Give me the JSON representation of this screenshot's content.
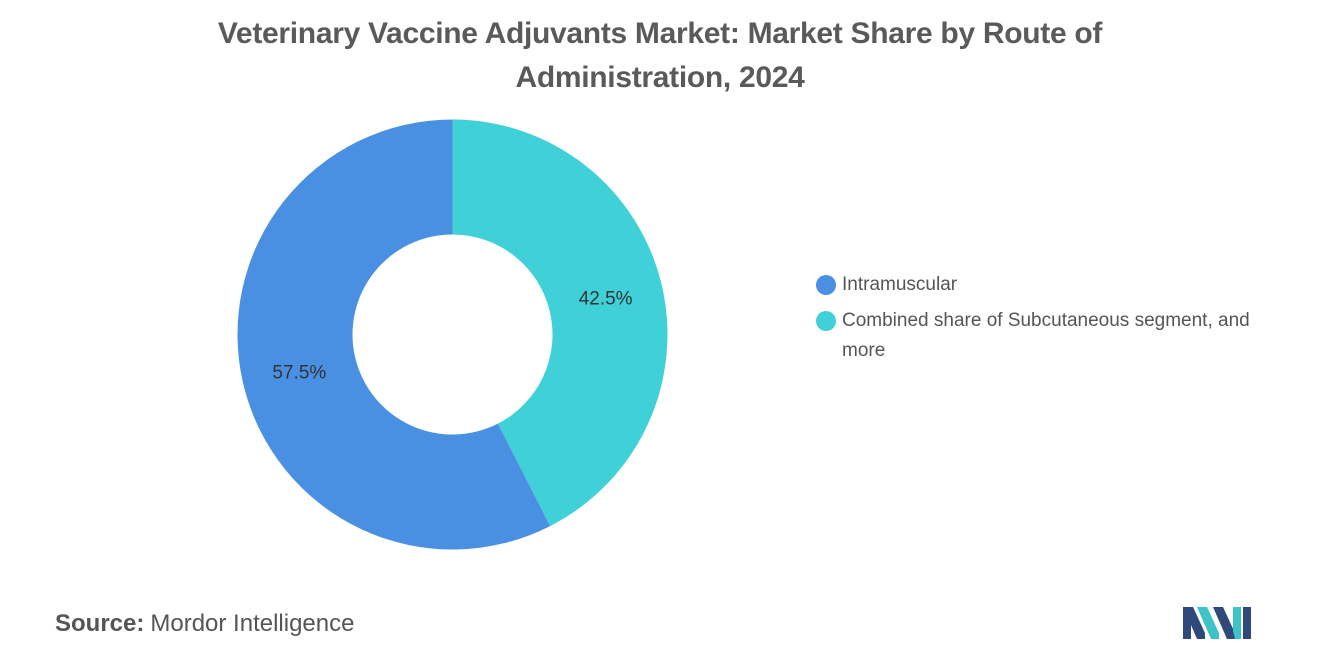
{
  "chart_data": {
    "type": "pie",
    "title": "Veterinary Vaccine Adjuvants Market: Market Share by Route of Administration, 2024",
    "categories": [
      "Intramuscular",
      "Combined share of Subcutaneous segment, and more"
    ],
    "values": [
      57.5,
      42.5
    ],
    "data_labels": [
      "57.5%",
      "42.5%"
    ],
    "colors": [
      "#4a90e2",
      "#40d0d8"
    ],
    "donut": true,
    "legend_position": "right"
  },
  "legend": {
    "items": [
      {
        "label": "Intramuscular",
        "color": "#4a90e2"
      },
      {
        "label": "Combined share of Subcutaneous segment, and more",
        "color": "#40d0d8"
      }
    ]
  },
  "source": {
    "label": "Source:",
    "value": "Mordor Intelligence"
  },
  "logo": {
    "icon": "mordor-intelligence-logo",
    "colors": [
      "#2f4a7a",
      "#3cc4c8"
    ]
  }
}
